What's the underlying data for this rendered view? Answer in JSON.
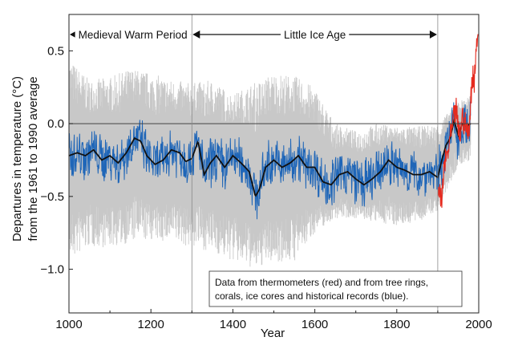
{
  "chart_data": {
    "type": "line",
    "xlabel": "Year",
    "ylabel_line1": "Departures in temperature (°C)",
    "ylabel_line2": "from the 1961 to 1990 average",
    "xlim": [
      1000,
      2000
    ],
    "ylim": [
      -1.3,
      0.75
    ],
    "xticks": [
      1000,
      1200,
      1400,
      1600,
      1800,
      2000
    ],
    "xtick_labels": [
      "1000",
      "1200",
      "1400",
      "1600",
      "1800",
      "2000"
    ],
    "yticks": [
      0.5,
      0.0,
      -0.5,
      -1.0
    ],
    "ytick_labels": [
      "0.5",
      "0.0",
      "−0.5",
      "−1.0"
    ],
    "periods": [
      {
        "label": "Medieval Warm Period",
        "start": 1000,
        "end": 1300
      },
      {
        "label": "Little Ice Age",
        "start": 1300,
        "end": 1900
      }
    ],
    "period_boundaries": [
      1300,
      1900
    ],
    "annotation_line1": "Data from thermometers (red) and from tree rings,",
    "annotation_line2": "corals, ice cores and historical records (blue).",
    "colors": {
      "uncertainty": "#c8c8c8",
      "proxy": "#1f66b8",
      "smoothed": "#111111",
      "thermometer": "#e52a1e"
    },
    "series": [
      {
        "key": "uncertainty",
        "x": [
          1000,
          1050,
          1100,
          1150,
          1200,
          1250,
          1300,
          1350,
          1400,
          1450,
          1500,
          1550,
          1600,
          1650,
          1700,
          1750,
          1800,
          1850,
          1900,
          1950,
          1980
        ],
        "upper": [
          0.45,
          0.3,
          0.32,
          0.38,
          0.35,
          0.3,
          0.28,
          0.3,
          0.2,
          0.28,
          0.35,
          0.33,
          0.25,
          0.0,
          -0.05,
          0.0,
          -0.02,
          -0.02,
          0.0,
          0.15,
          0.2
        ],
        "lower": [
          -0.95,
          -0.85,
          -0.85,
          -0.82,
          -0.8,
          -0.82,
          -0.85,
          -0.88,
          -0.95,
          -1.0,
          -0.95,
          -0.95,
          -0.75,
          -0.65,
          -0.65,
          -0.68,
          -0.7,
          -0.68,
          -0.6,
          -0.3,
          -0.25
        ]
      },
      {
        "key": "smoothed",
        "x": [
          1000,
          1020,
          1040,
          1060,
          1080,
          1100,
          1120,
          1140,
          1160,
          1175,
          1190,
          1210,
          1230,
          1250,
          1270,
          1285,
          1300,
          1315,
          1330,
          1345,
          1360,
          1380,
          1400,
          1420,
          1440,
          1455,
          1465,
          1480,
          1500,
          1520,
          1540,
          1560,
          1580,
          1600,
          1620,
          1640,
          1660,
          1680,
          1700,
          1720,
          1740,
          1760,
          1780,
          1800,
          1820,
          1840,
          1860,
          1880,
          1900,
          1910,
          1920,
          1930,
          1940,
          1950,
          1960,
          1970,
          1980
        ],
        "y": [
          -0.22,
          -0.2,
          -0.22,
          -0.18,
          -0.25,
          -0.22,
          -0.27,
          -0.2,
          -0.1,
          -0.12,
          -0.22,
          -0.28,
          -0.25,
          -0.18,
          -0.2,
          -0.26,
          -0.24,
          -0.12,
          -0.35,
          -0.27,
          -0.22,
          -0.3,
          -0.22,
          -0.27,
          -0.33,
          -0.5,
          -0.45,
          -0.3,
          -0.25,
          -0.3,
          -0.27,
          -0.22,
          -0.3,
          -0.3,
          -0.4,
          -0.42,
          -0.35,
          -0.33,
          -0.38,
          -0.42,
          -0.38,
          -0.33,
          -0.25,
          -0.3,
          -0.32,
          -0.35,
          -0.35,
          -0.33,
          -0.37,
          -0.25,
          -0.15,
          -0.1,
          0.02,
          -0.08,
          0.0,
          -0.02,
          0.0
        ]
      },
      {
        "key": "thermometer",
        "x": [
          1900,
          1905,
          1910,
          1915,
          1920,
          1925,
          1930,
          1935,
          1940,
          1945,
          1950,
          1955,
          1960,
          1965,
          1970,
          1975,
          1980,
          1983,
          1986,
          1989,
          1992,
          1995,
          1998
        ],
        "y": [
          -0.4,
          -0.5,
          -0.55,
          -0.3,
          -0.25,
          -0.2,
          -0.1,
          -0.05,
          0.05,
          0.1,
          -0.05,
          -0.08,
          0.05,
          0.0,
          -0.02,
          -0.1,
          0.15,
          0.25,
          0.35,
          0.3,
          0.45,
          0.55,
          0.65
        ]
      }
    ]
  }
}
